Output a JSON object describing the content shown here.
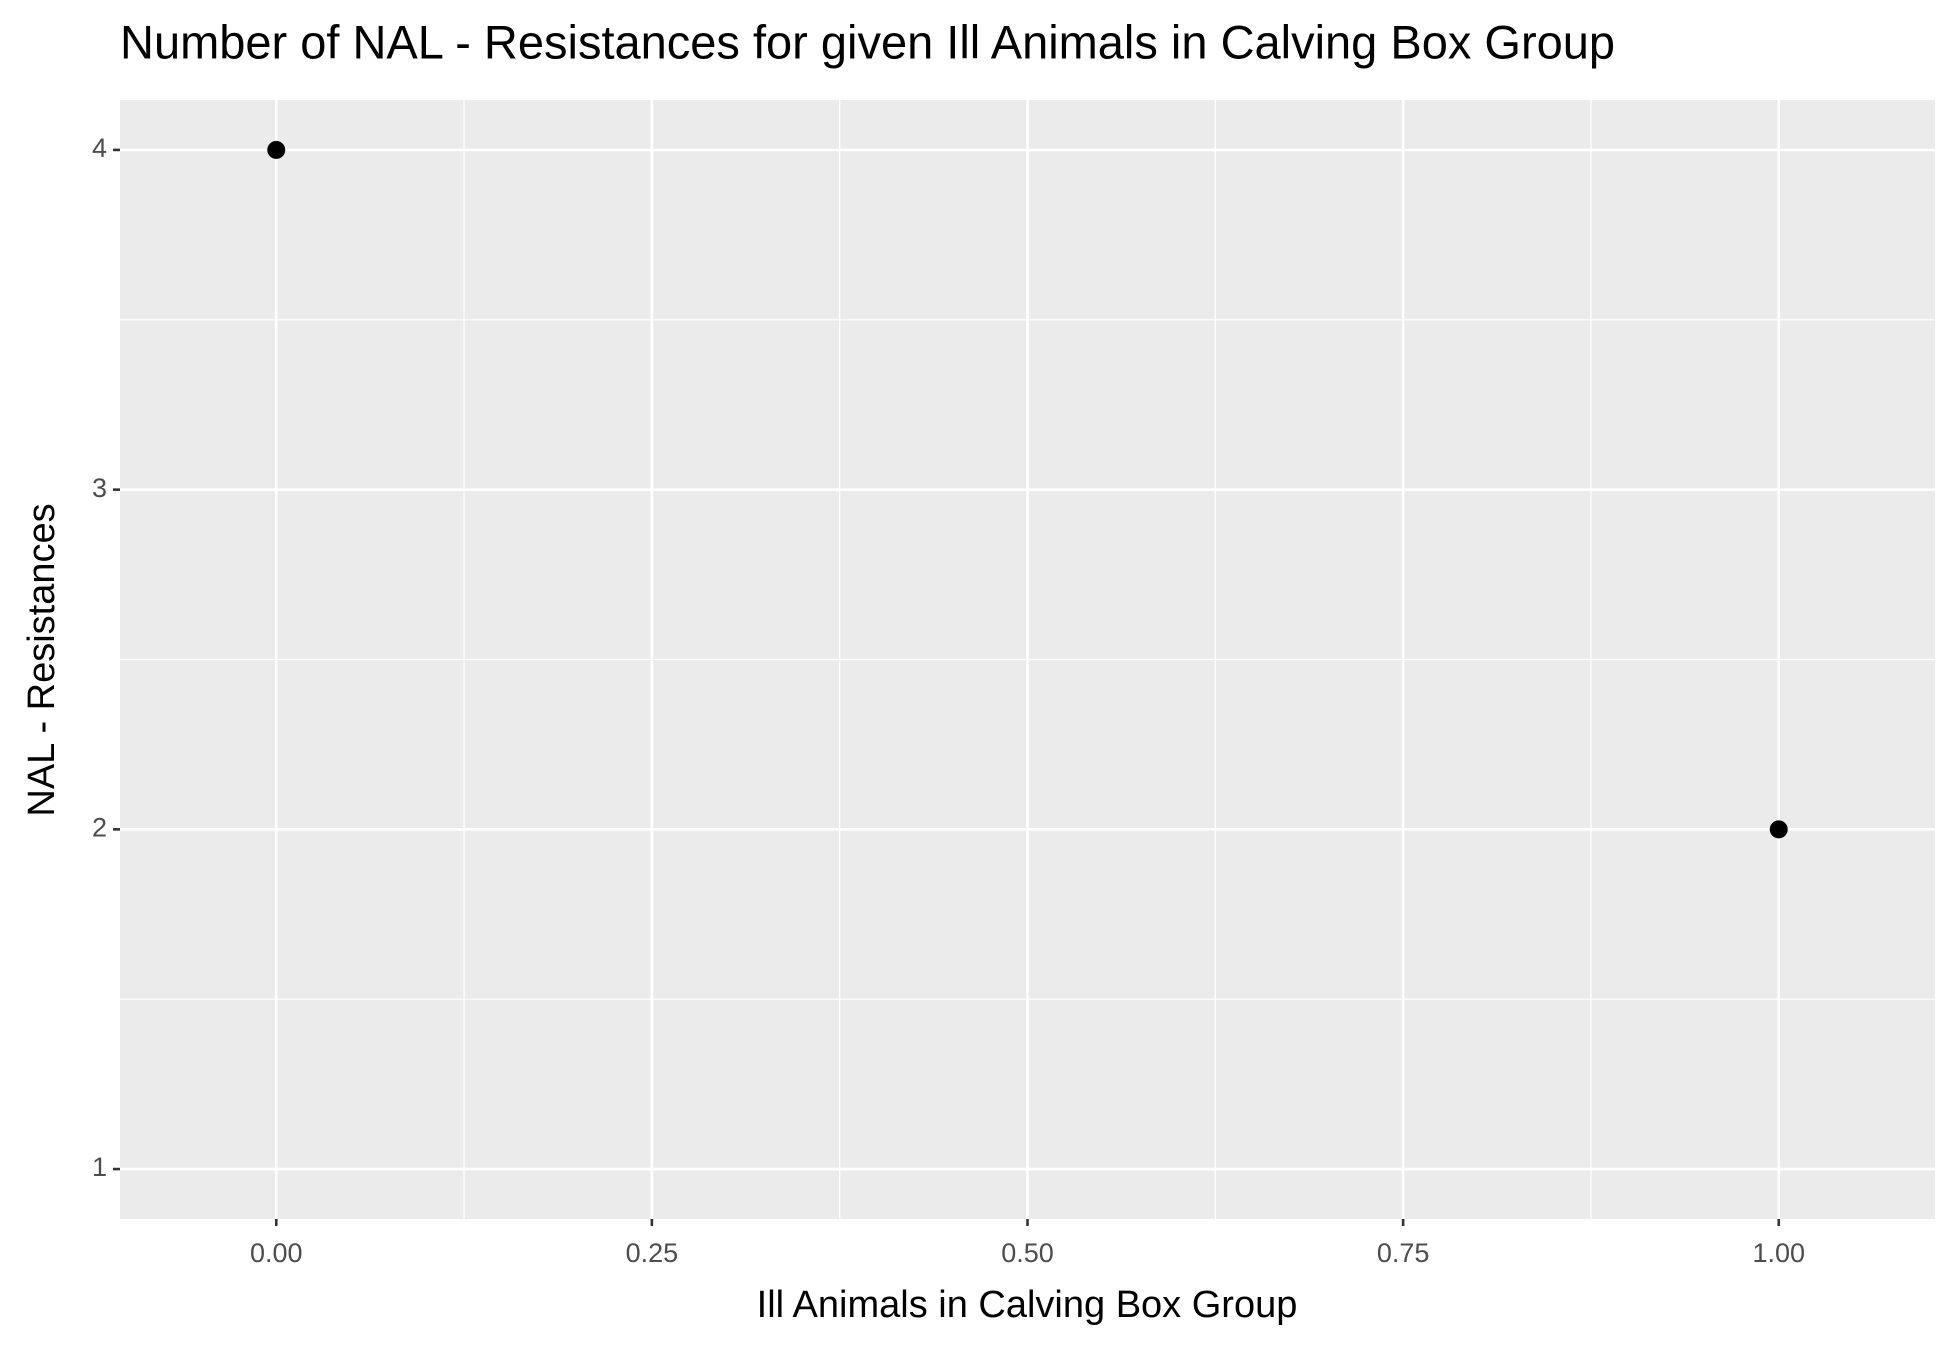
{
  "chart_data": {
    "type": "scatter",
    "title": "Number of NAL - Resistances for given Ill Animals in Calving Box Group",
    "x_label": "Ill Animals in Calving Box Group",
    "y_label": "NAL - Resistances",
    "x": [
      0,
      1
    ],
    "values": [
      4,
      2
    ],
    "color": "#000000",
    "xlim": [
      -0.104,
      1.104
    ],
    "xticks": [
      {
        "value": 0,
        "label": "0.00"
      },
      0.25,
      {
        "value": 0.5,
        "label": "0.50"
      },
      0.75,
      {
        "value": 1,
        "label": "1.00"
      }
    ],
    "ylim": [
      0.853,
      4.147
    ],
    "yticks": [
      1,
      2,
      3,
      4
    ],
    "grid": true
  }
}
